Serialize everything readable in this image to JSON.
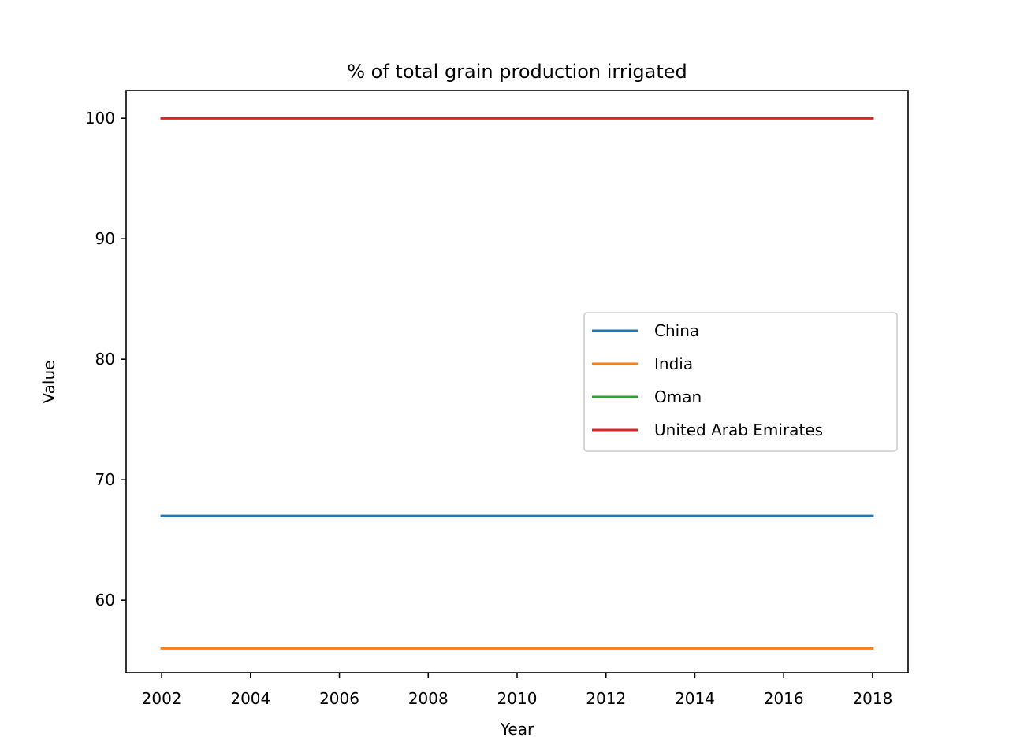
{
  "chart_data": {
    "type": "line",
    "title": "% of total grain production irrigated",
    "xlabel": "Year",
    "ylabel": "Value",
    "xlim": [
      2001.2,
      2018.8
    ],
    "ylim": [
      54,
      102.3
    ],
    "xticks": [
      2002,
      2004,
      2006,
      2008,
      2010,
      2012,
      2014,
      2016,
      2018
    ],
    "yticks": [
      60,
      70,
      80,
      90,
      100
    ],
    "grid": false,
    "legend_position": "center-right",
    "x": [
      2002,
      2018
    ],
    "series": [
      {
        "name": "China",
        "color": "#1f77b4",
        "values": [
          67,
          67
        ]
      },
      {
        "name": "India",
        "color": "#ff7f0e",
        "values": [
          56,
          56
        ]
      },
      {
        "name": "Oman",
        "color": "#2ca02c",
        "values": [
          100,
          100
        ]
      },
      {
        "name": "United Arab Emirates",
        "color": "#d62728",
        "values": [
          100,
          100
        ]
      }
    ]
  }
}
